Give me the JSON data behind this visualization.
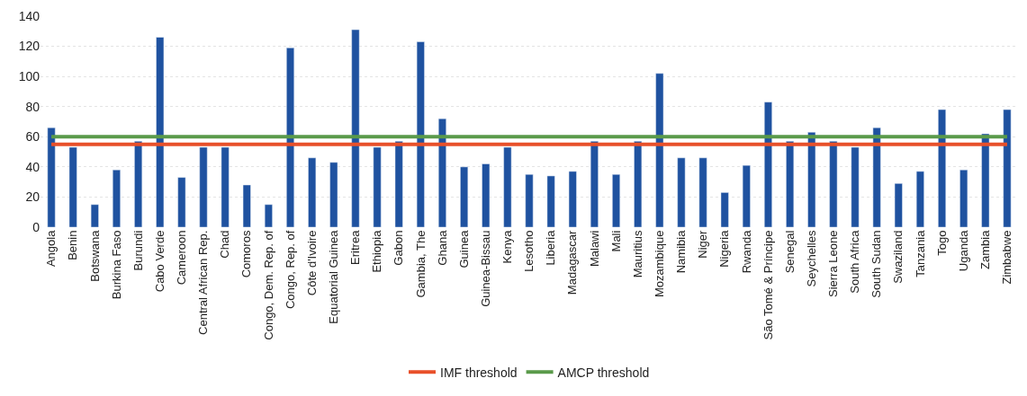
{
  "chart_data": {
    "type": "bar",
    "categories": [
      "Angola",
      "Benin",
      "Botswana",
      "Burkina Faso",
      "Burundi",
      "Cabo Verde",
      "Cameroon",
      "Central African Rep.",
      "Chad",
      "Comoros",
      "Congo, Dem. Rep. of",
      "Congo, Rep. of",
      "Côte d'Ivoire",
      "Equatorial Guinea",
      "Eritrea",
      "Ethiopia",
      "Gabon",
      "Gambia, The",
      "Ghana",
      "Guinea",
      "Guinea-Bissau",
      "Kenya",
      "Lesotho",
      "Liberia",
      "Madagascar",
      "Malawi",
      "Mali",
      "Mauritius",
      "Mozambique",
      "Namibia",
      "Niger",
      "Nigeria",
      "Rwanda",
      "São Tomé & Príncipe",
      "Senegal",
      "Seychelles",
      "Sierra Leone",
      "South Africa",
      "South Sudan",
      "Swaziland",
      "Tanzania",
      "Togo",
      "Uganda",
      "Zambia",
      "Zimbabwe"
    ],
    "series": [
      {
        "color": "#1f52a0",
        "values": [
          66,
          53,
          15,
          38,
          57,
          126,
          33,
          53,
          53,
          28,
          15,
          119,
          46,
          43,
          131,
          53,
          57,
          123,
          72,
          40,
          42,
          53,
          35,
          34,
          37,
          57,
          35,
          57,
          102,
          46,
          46,
          23,
          41,
          83,
          57,
          63,
          57,
          53,
          66,
          29,
          37,
          78,
          38,
          62,
          78
        ]
      },
      {
        "type": "line",
        "name": "IMF threshold",
        "color": "#e8502a",
        "values": [
          55,
          55,
          55,
          55,
          55,
          55,
          55,
          55,
          55,
          55,
          55,
          55,
          55,
          55,
          55,
          55,
          55,
          55,
          55,
          55,
          55,
          55,
          55,
          55,
          55,
          55,
          55,
          55,
          55,
          55,
          55,
          55,
          55,
          55,
          55,
          55,
          55,
          55,
          55,
          55,
          55,
          55,
          55,
          55,
          55
        ]
      },
      {
        "type": "line",
        "name": "AMCP threshold",
        "color": "#5a9a4a",
        "values": [
          60,
          60,
          60,
          60,
          60,
          60,
          60,
          60,
          60,
          60,
          60,
          60,
          60,
          60,
          60,
          60,
          60,
          60,
          60,
          60,
          60,
          60,
          60,
          60,
          60,
          60,
          60,
          60,
          60,
          60,
          60,
          60,
          60,
          60,
          60,
          60,
          60,
          60,
          60,
          60,
          60,
          60,
          60,
          60,
          60
        ]
      }
    ],
    "ylim": [
      0,
      140
    ],
    "yticks": [
      0,
      20,
      40,
      60,
      80,
      100,
      120,
      140
    ],
    "grid": "y",
    "legend": "bottom",
    "marker": "none"
  }
}
